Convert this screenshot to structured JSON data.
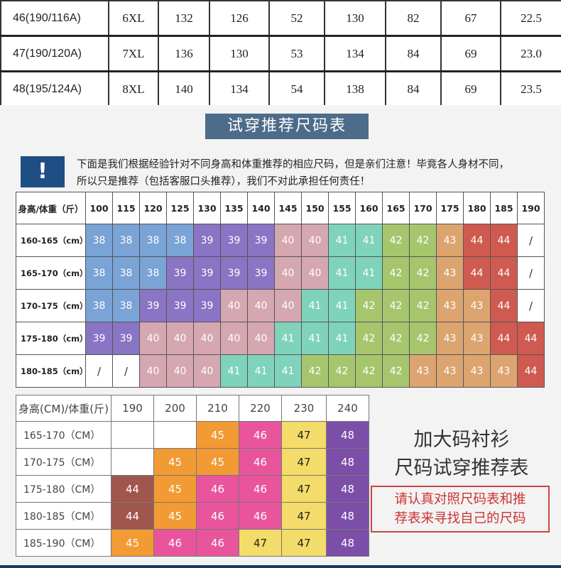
{
  "size_table": {
    "rows": [
      [
        "46(190/116A)",
        "6XL",
        "132",
        "126",
        "52",
        "130",
        "82",
        "67",
        "22.5"
      ],
      [
        "47(190/120A)",
        "7XL",
        "136",
        "130",
        "53",
        "134",
        "84",
        "69",
        "23.0"
      ],
      [
        "48(195/124A)",
        "8XL",
        "140",
        "134",
        "54",
        "138",
        "84",
        "69",
        "23.5"
      ]
    ]
  },
  "title": "试穿推荐尺码表",
  "warning_icon": "!",
  "note_line1": "下面是我们根据经验针对不同身高和体重推荐的相应尺码，但是亲们注意！毕竟各人身材不同，",
  "note_line2": "所以只是推荐（包括客服口头推荐），我们不对此承担任何责任！",
  "rec_table_1": {
    "header_label": "身高/体重（斤）",
    "weights": [
      "100",
      "115",
      "120",
      "125",
      "130",
      "135",
      "140",
      "145",
      "150",
      "155",
      "160",
      "165",
      "170",
      "175",
      "180",
      "185",
      "190"
    ],
    "rows": [
      {
        "label": "160-165（cm）",
        "cells": [
          "38",
          "38",
          "38",
          "38",
          "39",
          "39",
          "39",
          "40",
          "40",
          "41",
          "41",
          "42",
          "42",
          "43",
          "44",
          "44",
          "/"
        ]
      },
      {
        "label": "165-170（cm）",
        "cells": [
          "38",
          "38",
          "38",
          "39",
          "39",
          "39",
          "39",
          "40",
          "40",
          "41",
          "41",
          "42",
          "42",
          "43",
          "44",
          "44",
          "/"
        ]
      },
      {
        "label": "170-175（cm）",
        "cells": [
          "38",
          "38",
          "39",
          "39",
          "39",
          "40",
          "40",
          "40",
          "41",
          "41",
          "42",
          "42",
          "42",
          "43",
          "43",
          "44",
          "/"
        ]
      },
      {
        "label": "175-180（cm）",
        "cells": [
          "39",
          "39",
          "40",
          "40",
          "40",
          "40",
          "40",
          "41",
          "41",
          "41",
          "42",
          "42",
          "42",
          "43",
          "43",
          "44",
          "44"
        ]
      },
      {
        "label": "180-185（cm）",
        "cells": [
          "/",
          "/",
          "40",
          "40",
          "40",
          "41",
          "41",
          "41",
          "42",
          "42",
          "42",
          "42",
          "43",
          "43",
          "43",
          "43",
          "44"
        ]
      }
    ]
  },
  "rec_table_2": {
    "header_label": "身高(CM)/体重(斤)",
    "weights": [
      "190",
      "200",
      "210",
      "220",
      "230",
      "240"
    ],
    "rows": [
      {
        "label": "165-170（CM）",
        "cells": [
          "",
          "",
          "45",
          "46",
          "47",
          "48"
        ]
      },
      {
        "label": "170-175（CM）",
        "cells": [
          "",
          "45",
          "45",
          "46",
          "47",
          "48"
        ]
      },
      {
        "label": "175-180（CM）",
        "cells": [
          "44",
          "45",
          "46",
          "46",
          "47",
          "48"
        ]
      },
      {
        "label": "180-185（CM）",
        "cells": [
          "44",
          "45",
          "46",
          "46",
          "47",
          "48"
        ]
      },
      {
        "label": "185-190（CM）",
        "cells": [
          "45",
          "46",
          "46",
          "47",
          "47",
          "48"
        ]
      }
    ]
  },
  "big_title_line1": "加大码衬衫",
  "big_title_line2": "尺码试穿推荐表",
  "red_note_line1": "请认真对照尺码表和推",
  "red_note_line2": "荐表来寻找自己的尺码",
  "size_colors": {
    "38": "#7aa3d6",
    "39": "#8a74c4",
    "40": "#d4a7b1",
    "41": "#7fd3bb",
    "42": "#a6c66e",
    "43": "#dca46f",
    "44": "#cf5a50",
    "45": "#f29a33",
    "46": "#e8559c",
    "47": "#f4dc6a",
    "48": "#7b4ea8",
    "44b": "#a0554d"
  }
}
